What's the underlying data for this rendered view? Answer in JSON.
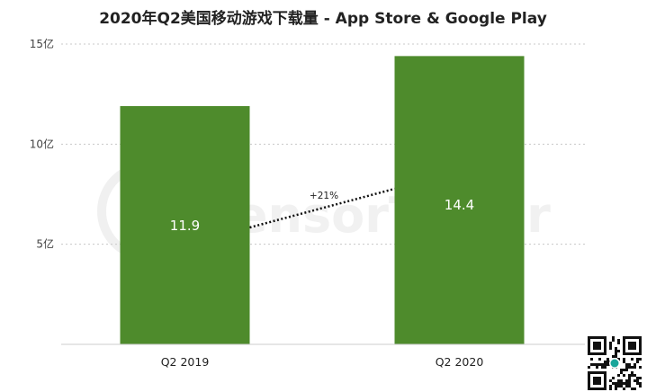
{
  "chart_data": {
    "type": "bar",
    "title": "2020年Q2美国移动游戏下载量 - App Store & Google Play",
    "categories": [
      "Q2  2019",
      "Q2 2020"
    ],
    "values": [
      11.9,
      14.4
    ],
    "value_labels": [
      "11.9",
      "14.4"
    ],
    "ylim": [
      0,
      15
    ],
    "yticks": [
      {
        "value": 5,
        "label": "5亿"
      },
      {
        "value": 10,
        "label": "10亿"
      },
      {
        "value": 15,
        "label": "15亿"
      }
    ],
    "grid": true,
    "legend": "none",
    "growth_annotation": "+21%",
    "bar_color": "#4e8b2c"
  },
  "watermark": {
    "brand": "SensorTower",
    "qr_code": "qr-code-icon"
  }
}
